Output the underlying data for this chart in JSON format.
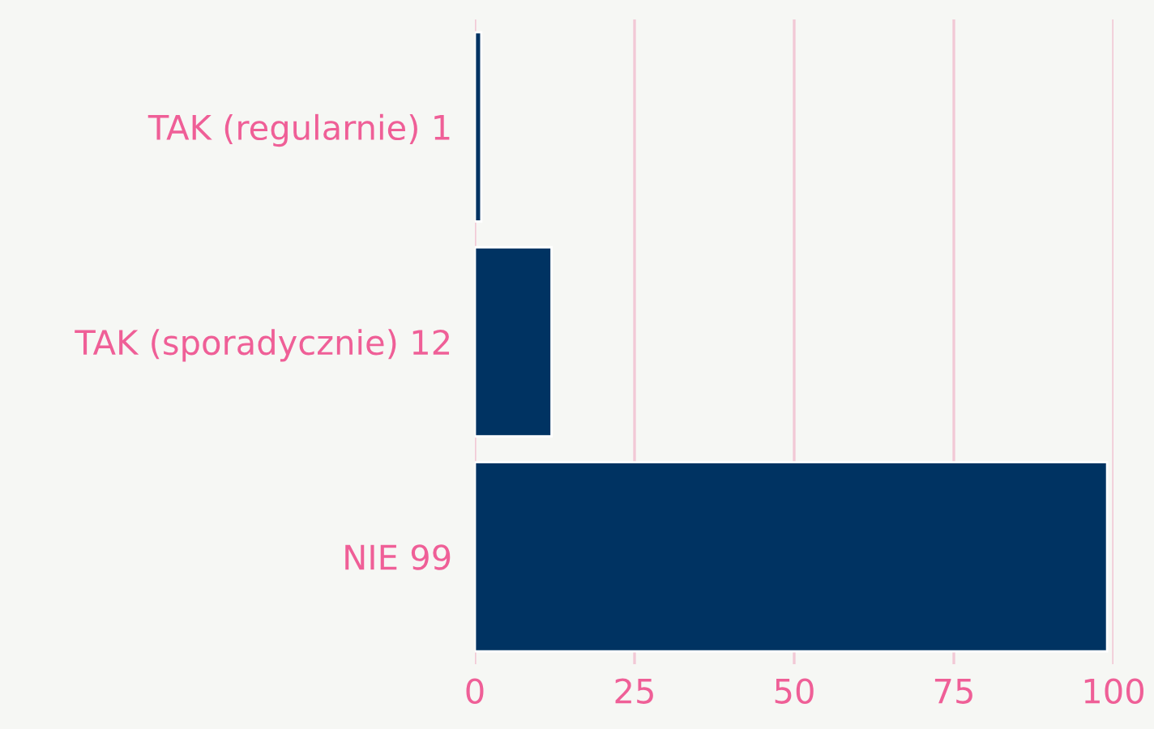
{
  "chart_data": {
    "type": "bar",
    "orientation": "horizontal",
    "categories": [
      "TAK (regularnie) 1",
      "TAK (sporadycznie) 12",
      "NIE 99"
    ],
    "values": [
      1,
      12,
      99
    ],
    "color": "#003362",
    "xlim": [
      0,
      100
    ],
    "xticks": [
      0,
      25,
      50,
      75,
      100
    ],
    "grid": "x"
  }
}
